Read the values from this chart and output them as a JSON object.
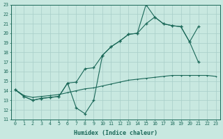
{
  "xlabel": "Humidex (Indice chaleur)",
  "bg_color": "#c8e8e0",
  "grid_color": "#a8cec8",
  "line_color": "#1a6858",
  "xlim": [
    0,
    23
  ],
  "ylim": [
    11,
    23
  ],
  "yticks": [
    11,
    12,
    13,
    14,
    15,
    16,
    17,
    18,
    19,
    20,
    21,
    22,
    23
  ],
  "xticks": [
    0,
    1,
    2,
    3,
    4,
    5,
    6,
    7,
    8,
    9,
    10,
    11,
    12,
    13,
    14,
    15,
    16,
    17,
    18,
    19,
    20,
    21,
    22,
    23
  ],
  "line1_x": [
    0,
    1,
    2,
    3,
    4,
    5,
    6,
    7,
    8,
    9,
    10,
    11,
    12,
    13,
    14,
    15,
    16,
    17,
    18,
    19,
    20,
    21
  ],
  "line1_y": [
    14.1,
    13.4,
    13.0,
    13.2,
    13.3,
    13.4,
    14.8,
    12.2,
    11.6,
    13.0,
    17.7,
    18.6,
    19.2,
    19.9,
    20.0,
    23.0,
    21.7,
    21.0,
    20.8,
    20.7,
    19.1,
    17.0
  ],
  "line2_x": [
    0,
    1,
    2,
    3,
    4,
    5,
    6,
    7,
    8,
    9,
    10,
    11,
    12,
    13,
    14,
    15,
    16,
    17,
    18,
    19,
    20,
    21
  ],
  "line2_y": [
    14.1,
    13.4,
    13.0,
    13.2,
    13.3,
    13.4,
    14.8,
    14.9,
    16.3,
    16.4,
    17.7,
    18.6,
    19.2,
    19.9,
    20.0,
    21.0,
    21.7,
    21.0,
    20.8,
    20.7,
    19.1,
    20.7
  ],
  "line3_x": [
    0,
    1,
    2,
    3,
    4,
    5,
    6,
    7,
    8,
    9,
    10,
    11,
    12,
    13,
    14,
    15,
    16,
    17,
    18,
    19,
    20,
    21,
    22,
    23
  ],
  "line3_y": [
    14.1,
    13.5,
    13.3,
    13.4,
    13.5,
    13.6,
    13.8,
    14.0,
    14.2,
    14.3,
    14.5,
    14.7,
    14.9,
    15.1,
    15.2,
    15.3,
    15.4,
    15.5,
    15.6,
    15.6,
    15.6,
    15.6,
    15.6,
    15.5
  ]
}
